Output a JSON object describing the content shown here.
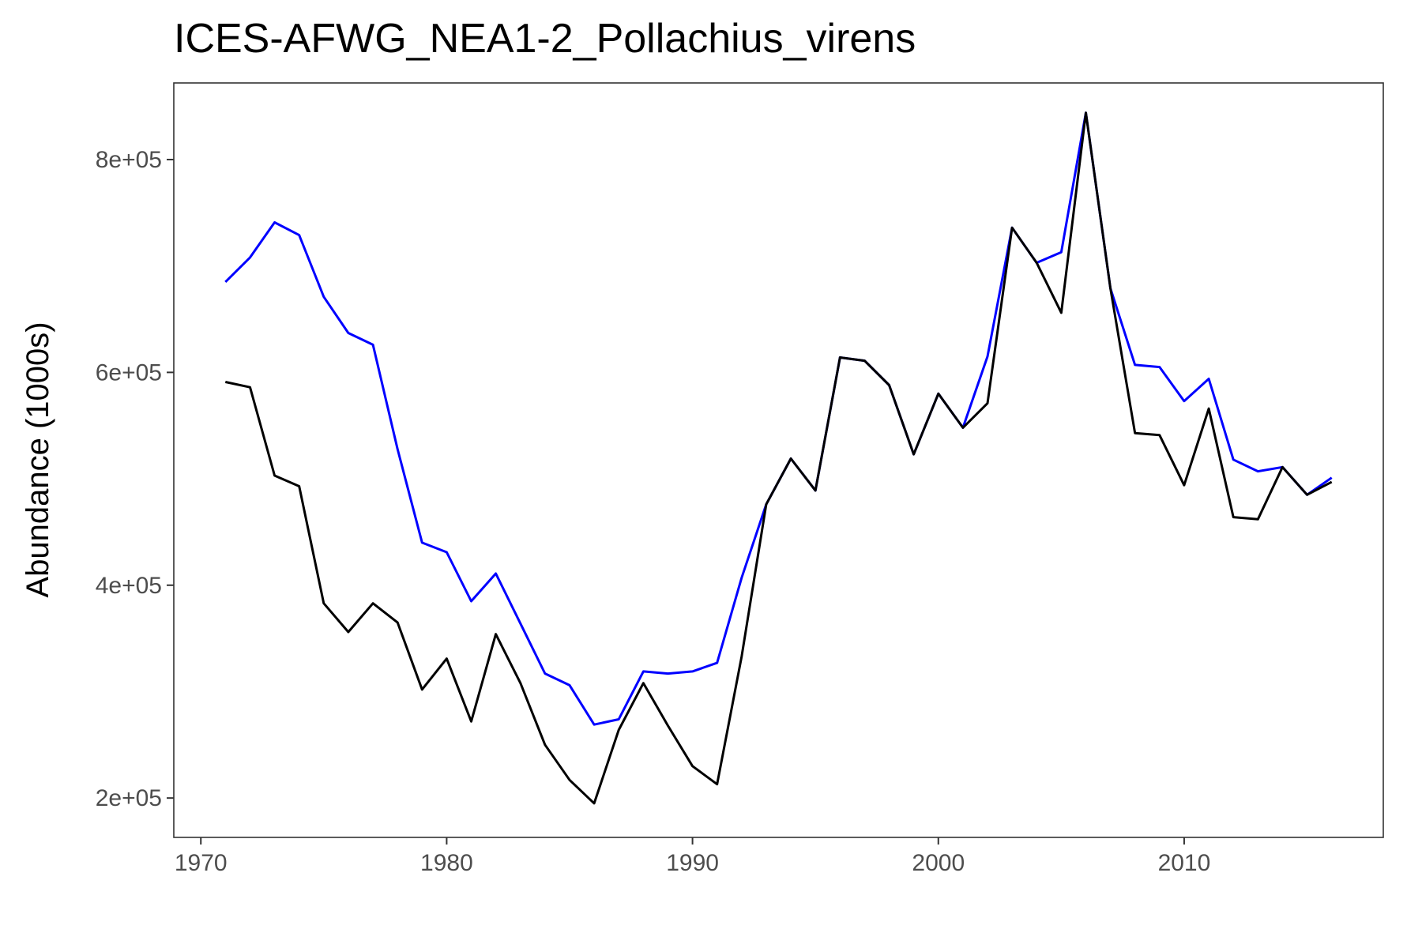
{
  "chart_data": {
    "type": "line",
    "title": "ICES-AFWG_NEA1-2_Pollachius_virens",
    "xlabel": "",
    "ylabel": "Abundance (1000s)",
    "x_ticks": [
      1970,
      1980,
      1990,
      2000,
      2010
    ],
    "x_tick_labels": [
      "1970",
      "1980",
      "1990",
      "2000",
      "2010"
    ],
    "y_ticks": [
      200000,
      400000,
      600000,
      800000
    ],
    "y_tick_labels": [
      "2e+05",
      "4e+05",
      "6e+05",
      "8e+05"
    ],
    "xlim": [
      1968.9,
      2018.1
    ],
    "ylim": [
      163000,
      872000
    ],
    "grid": false,
    "x": [
      1971,
      1972,
      1973,
      1974,
      1975,
      1976,
      1977,
      1978,
      1979,
      1980,
      1981,
      1982,
      1983,
      1984,
      1985,
      1986,
      1987,
      1988,
      1989,
      1990,
      1991,
      1992,
      1993,
      1994,
      1995,
      1996,
      1997,
      1998,
      1999,
      2000,
      2001,
      2002,
      2003,
      2004,
      2005,
      2006,
      2007,
      2008,
      2009,
      2010,
      2011,
      2012,
      2013,
      2014,
      2015,
      2016
    ],
    "series": [
      {
        "color": "#0000ff",
        "values": [
          685000,
          708000,
          741000,
          729000,
          671000,
          637000,
          626000,
          528000,
          440000,
          431000,
          385000,
          411000,
          364000,
          317000,
          306000,
          269000,
          274000,
          319000,
          317000,
          319000,
          327000,
          407000,
          476000,
          519000,
          489000,
          614000,
          611000,
          588000,
          523000,
          580000,
          548000,
          615000,
          736000,
          703000,
          713000,
          844000,
          679000,
          607000,
          605000,
          573000,
          594000,
          518000,
          507000,
          511000,
          485000,
          501000
        ]
      },
      {
        "color": "#000000",
        "values": [
          591000,
          586000,
          503000,
          493000,
          383000,
          356000,
          383000,
          365000,
          302000,
          331000,
          272000,
          354000,
          308000,
          250000,
          217000,
          195000,
          264000,
          308000,
          268000,
          230000,
          213000,
          333000,
          476000,
          519000,
          489000,
          614000,
          611000,
          588000,
          523000,
          580000,
          548000,
          571000,
          736000,
          703000,
          656000,
          844000,
          679000,
          543000,
          541000,
          494000,
          566000,
          464000,
          462000,
          511000,
          485000,
          497000
        ]
      }
    ]
  }
}
